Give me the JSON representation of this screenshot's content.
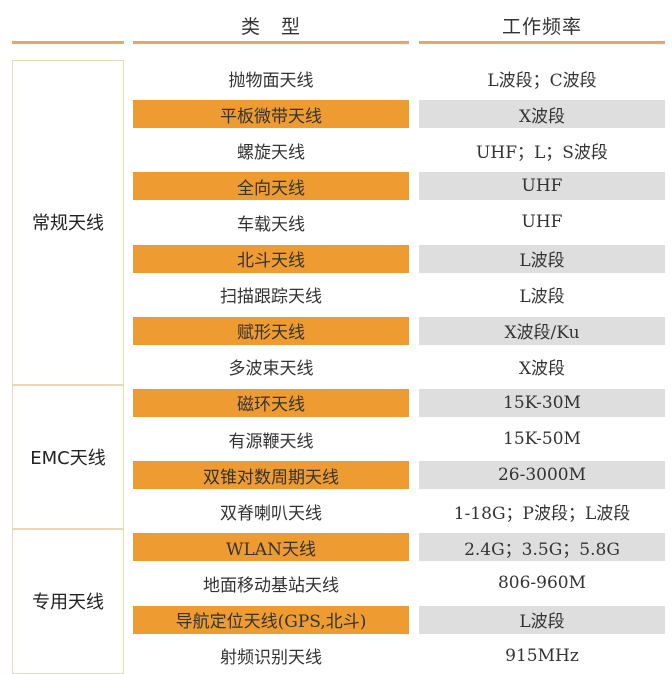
{
  "header": {
    "type": "类　型",
    "freq": "工作频率"
  },
  "groups": [
    {
      "label": "常规天线",
      "rows": [
        {
          "type": "抛物面天线",
          "freq": "L波段；C波段"
        },
        {
          "type": "平板微带天线",
          "freq": "X波段"
        },
        {
          "type": "螺旋天线",
          "freq": "UHF；L；S波段"
        },
        {
          "type": "全向天线",
          "freq": "UHF"
        },
        {
          "type": "车载天线",
          "freq": "UHF"
        },
        {
          "type": "北斗天线",
          "freq": "L波段"
        },
        {
          "type": "扫描跟踪天线",
          "freq": "L波段"
        },
        {
          "type": "赋形天线",
          "freq": "X波段/Ku"
        },
        {
          "type": "多波束天线",
          "freq": "X波段"
        }
      ]
    },
    {
      "label": "EMC天线",
      "rows": [
        {
          "type": "磁环天线",
          "freq": "15K-30M"
        },
        {
          "type": "有源鞭天线",
          "freq": "15K-50M"
        },
        {
          "type": "双锥对数周期天线",
          "freq": "26-3000M"
        },
        {
          "type": "双脊喇叭天线",
          "freq": "1-18G；P波段；L波段"
        }
      ]
    },
    {
      "label": "专用天线",
      "rows": [
        {
          "type": "WLAN天线",
          "freq": "2.4G；3.5G；5.8G"
        },
        {
          "type": "地面移动基站天线",
          "freq": "806-960M"
        },
        {
          "type": "导航定位天线(GPS,北斗)",
          "freq": "L波段"
        },
        {
          "type": "射频识别天线",
          "freq": "915MHz"
        }
      ]
    }
  ],
  "colors": {
    "highlight_type": "#EE9B32",
    "highlight_freq": "#DEDEDE",
    "rule": "#E3A862"
  }
}
